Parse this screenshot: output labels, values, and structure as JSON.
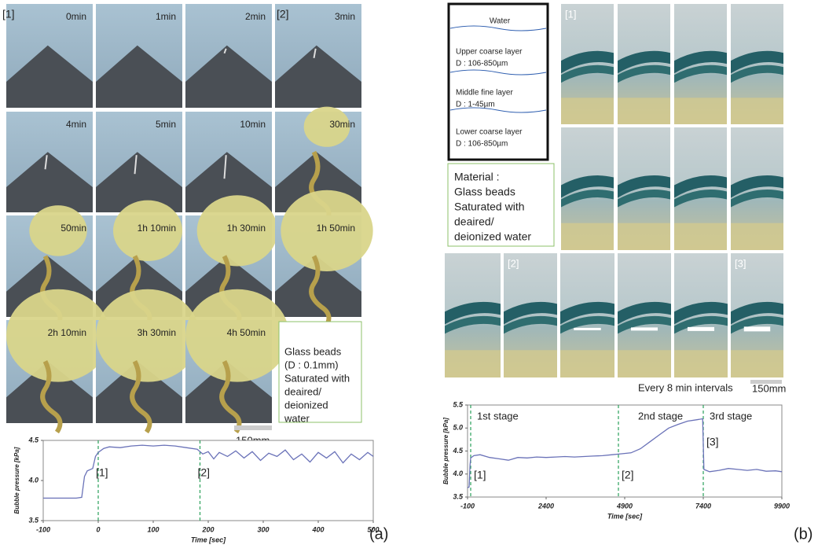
{
  "panels": {
    "a": {
      "frames": [
        "0min",
        "1min",
        "2min",
        "3min",
        "4min",
        "5min",
        "10min",
        "30min",
        "50min",
        "1h 10min",
        "1h 30min",
        "1h 50min",
        "2h 10min",
        "3h 30min",
        "4h 50min"
      ],
      "markers": [
        "[1]",
        "[2]"
      ],
      "note": [
        "Glass beads",
        "(D : 0.1mm)",
        "Saturated with",
        "deaired/",
        "deionized",
        "water"
      ],
      "scale_label": "150mm",
      "label": "(a)"
    },
    "b": {
      "diagram": {
        "water": "Water",
        "layers": [
          [
            "Upper coarse layer",
            "D : 106-850µm"
          ],
          [
            "Middle fine layer",
            "D : 1-45µm"
          ],
          [
            "Lower coarse layer",
            "D : 106-850µm"
          ]
        ]
      },
      "material": [
        "Material :",
        "Glass beads",
        "Saturated with",
        "deaired/",
        "deionized water"
      ],
      "markers": [
        "[1]",
        "[2]",
        "[3]"
      ],
      "interval": "Every 8 min intervals",
      "scale_label": "150mm",
      "label": "(b)"
    }
  },
  "chart_data": [
    {
      "type": "line",
      "ylabel": "Bubble pressure [kPa]",
      "xlabel": "Time [sec]",
      "color": "#6a72b8",
      "xlim": [
        -100,
        500
      ],
      "xticks": [
        -100,
        0,
        100,
        200,
        300,
        400,
        500
      ],
      "ylim": [
        3.5,
        4.5
      ],
      "yticks": [
        3.5,
        {
          "value": 4,
          "label": "4.0"
        },
        4.5
      ],
      "vlines": [
        0,
        185
      ],
      "vline_labels": [
        "[1]",
        "[2]"
      ],
      "x": [
        -100,
        -80,
        -60,
        -40,
        -30,
        -25,
        -20,
        -10,
        -5,
        0,
        10,
        20,
        40,
        60,
        80,
        100,
        120,
        140,
        160,
        180,
        190,
        200,
        210,
        220,
        235,
        250,
        265,
        280,
        295,
        310,
        325,
        340,
        355,
        370,
        385,
        400,
        415,
        430,
        445,
        460,
        475,
        490,
        500
      ],
      "values": [
        3.78,
        3.78,
        3.78,
        3.78,
        3.79,
        4.05,
        4.12,
        4.15,
        4.3,
        4.35,
        4.4,
        4.42,
        4.41,
        4.43,
        4.44,
        4.43,
        4.44,
        4.43,
        4.41,
        4.39,
        4.33,
        4.36,
        4.27,
        4.35,
        4.3,
        4.37,
        4.28,
        4.36,
        4.25,
        4.34,
        4.3,
        4.38,
        4.26,
        4.33,
        4.23,
        4.35,
        4.28,
        4.36,
        4.22,
        4.33,
        4.26,
        4.35,
        4.3
      ]
    },
    {
      "type": "line",
      "ylabel": "Bubble pressure [kPa]",
      "xlabel": "Time [sec]",
      "color": "#6a72b8",
      "xlim": [
        -100,
        9900
      ],
      "xticks": [
        -100,
        2400,
        4900,
        7400,
        9900
      ],
      "ylim": [
        3.5,
        5.5
      ],
      "yticks": [
        3.5,
        {
          "value": 4,
          "label": "4.0"
        },
        4.5,
        {
          "value": 5,
          "label": "5.0"
        },
        5.5
      ],
      "vlines": [
        0,
        4700,
        7400
      ],
      "stage_labels": [
        "1st stage",
        "2nd stage",
        "3rd stage"
      ],
      "vline_labels": [
        "[1]",
        "[2]",
        "[3]"
      ],
      "x": [
        -100,
        -50,
        -20,
        0,
        100,
        300,
        600,
        900,
        1200,
        1500,
        1800,
        2100,
        2400,
        2700,
        3000,
        3300,
        3600,
        3900,
        4200,
        4500,
        4800,
        5100,
        5400,
        5700,
        6000,
        6300,
        6600,
        6900,
        7200,
        7380,
        7420,
        7600,
        7900,
        8200,
        8500,
        8800,
        9100,
        9400,
        9700,
        9900
      ],
      "values": [
        3.7,
        3.72,
        4.2,
        4.35,
        4.4,
        4.42,
        4.36,
        4.33,
        4.3,
        4.36,
        4.35,
        4.37,
        4.36,
        4.37,
        4.38,
        4.37,
        4.38,
        4.39,
        4.4,
        4.42,
        4.44,
        4.46,
        4.55,
        4.7,
        4.85,
        5.0,
        5.08,
        5.15,
        5.18,
        5.2,
        4.1,
        4.05,
        4.08,
        4.12,
        4.1,
        4.08,
        4.1,
        4.06,
        4.07,
        4.05
      ]
    }
  ]
}
